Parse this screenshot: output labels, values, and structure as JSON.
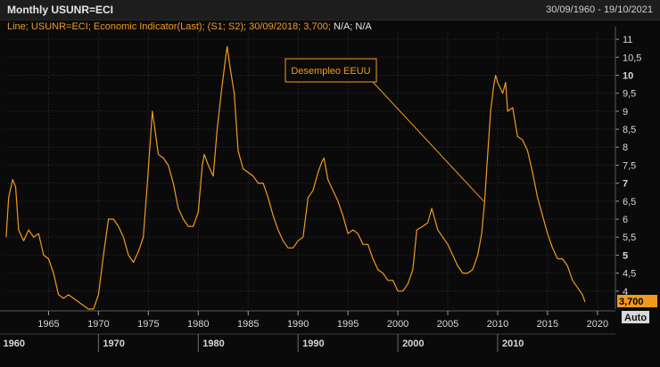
{
  "header": {
    "title": "Monthly USUNR=ECI",
    "date_range": "30/09/1960 - 19/10/2021"
  },
  "legend": {
    "prefix": "Line; USUNR=ECI; Economic Indicator(Last); (S1; S2); 30/09/2018; 3,700;",
    "na1": "N/A",
    "sep": ";",
    "na2": "N/A"
  },
  "axis": {
    "auto_label": "Auto",
    "last_value_label": "3,700"
  },
  "colors": {
    "background": "#0a0a0a",
    "line": "#f29a1c",
    "grid": "#2d2d2d",
    "axis_text": "#d8d8d8"
  },
  "chart_data": {
    "type": "line",
    "title": "",
    "xlabel": "",
    "ylabel": "",
    "xlim": [
      1960.67,
      2021.8
    ],
    "ylim": [
      3.5,
      11.2
    ],
    "grid": true,
    "y_ticks": [
      4,
      4.5,
      5,
      5.5,
      6,
      6.5,
      7,
      7.5,
      8,
      8.5,
      9,
      9.5,
      10,
      10.5,
      11
    ],
    "y_tick_labels": [
      "4",
      "4,5",
      "5",
      "5,5",
      "6",
      "6,5",
      "7",
      "7,5",
      "8",
      "8,5",
      "9",
      "9,5",
      "10",
      "10,5",
      "11"
    ],
    "y_tick_bold": [
      false,
      false,
      true,
      false,
      false,
      false,
      true,
      false,
      false,
      false,
      false,
      false,
      true,
      false,
      false
    ],
    "x_minor_ticks": [
      1965,
      1970,
      1975,
      1980,
      1985,
      1990,
      1995,
      2000,
      2005,
      2010,
      2015,
      2020
    ],
    "x_major_ticks": [
      1960,
      1970,
      1980,
      1990,
      2000,
      2010
    ],
    "annotation": {
      "text": "Desempleo EEUU",
      "x": 2008.6,
      "y": 6.5
    },
    "series": [
      {
        "points": [
          [
            1960.75,
            5.5
          ],
          [
            1961.0,
            6.6
          ],
          [
            1961.4,
            7.1
          ],
          [
            1961.7,
            6.9
          ],
          [
            1962.0,
            5.7
          ],
          [
            1962.5,
            5.4
          ],
          [
            1963.0,
            5.7
          ],
          [
            1963.5,
            5.5
          ],
          [
            1964.0,
            5.6
          ],
          [
            1964.5,
            5.0
          ],
          [
            1965.0,
            4.9
          ],
          [
            1965.5,
            4.5
          ],
          [
            1966.0,
            3.9
          ],
          [
            1966.5,
            3.8
          ],
          [
            1967.0,
            3.9
          ],
          [
            1967.5,
            3.8
          ],
          [
            1968.0,
            3.7
          ],
          [
            1968.5,
            3.6
          ],
          [
            1969.0,
            3.5
          ],
          [
            1969.5,
            3.5
          ],
          [
            1970.0,
            3.9
          ],
          [
            1970.5,
            5.0
          ],
          [
            1971.0,
            6.0
          ],
          [
            1971.5,
            6.0
          ],
          [
            1972.0,
            5.8
          ],
          [
            1972.5,
            5.5
          ],
          [
            1973.0,
            5.0
          ],
          [
            1973.5,
            4.8
          ],
          [
            1974.0,
            5.1
          ],
          [
            1974.5,
            5.5
          ],
          [
            1974.9,
            7.0
          ],
          [
            1975.3,
            8.6
          ],
          [
            1975.4,
            9.0
          ],
          [
            1975.7,
            8.4
          ],
          [
            1976.0,
            7.8
          ],
          [
            1976.5,
            7.7
          ],
          [
            1977.0,
            7.5
          ],
          [
            1977.5,
            7.0
          ],
          [
            1978.0,
            6.3
          ],
          [
            1978.5,
            6.0
          ],
          [
            1979.0,
            5.8
          ],
          [
            1979.5,
            5.8
          ],
          [
            1980.0,
            6.2
          ],
          [
            1980.4,
            7.5
          ],
          [
            1980.6,
            7.8
          ],
          [
            1981.0,
            7.5
          ],
          [
            1981.5,
            7.2
          ],
          [
            1981.9,
            8.5
          ],
          [
            1982.3,
            9.5
          ],
          [
            1982.7,
            10.4
          ],
          [
            1982.9,
            10.8
          ],
          [
            1983.2,
            10.2
          ],
          [
            1983.6,
            9.5
          ],
          [
            1984.0,
            7.9
          ],
          [
            1984.5,
            7.4
          ],
          [
            1985.0,
            7.3
          ],
          [
            1985.5,
            7.2
          ],
          [
            1986.0,
            7.0
          ],
          [
            1986.5,
            7.0
          ],
          [
            1987.0,
            6.6
          ],
          [
            1987.5,
            6.1
          ],
          [
            1988.0,
            5.7
          ],
          [
            1988.5,
            5.4
          ],
          [
            1989.0,
            5.2
          ],
          [
            1989.5,
            5.2
          ],
          [
            1990.0,
            5.4
          ],
          [
            1990.5,
            5.5
          ],
          [
            1991.0,
            6.6
          ],
          [
            1991.5,
            6.8
          ],
          [
            1992.0,
            7.3
          ],
          [
            1992.4,
            7.6
          ],
          [
            1992.6,
            7.7
          ],
          [
            1993.0,
            7.1
          ],
          [
            1993.5,
            6.8
          ],
          [
            1994.0,
            6.5
          ],
          [
            1994.5,
            6.1
          ],
          [
            1995.0,
            5.6
          ],
          [
            1995.5,
            5.7
          ],
          [
            1996.0,
            5.6
          ],
          [
            1996.5,
            5.3
          ],
          [
            1997.0,
            5.3
          ],
          [
            1997.5,
            4.9
          ],
          [
            1998.0,
            4.6
          ],
          [
            1998.5,
            4.5
          ],
          [
            1999.0,
            4.3
          ],
          [
            1999.5,
            4.3
          ],
          [
            2000.0,
            4.0
          ],
          [
            2000.5,
            4.0
          ],
          [
            2001.0,
            4.2
          ],
          [
            2001.5,
            4.6
          ],
          [
            2001.9,
            5.7
          ],
          [
            2002.5,
            5.8
          ],
          [
            2003.0,
            5.9
          ],
          [
            2003.4,
            6.3
          ],
          [
            2003.8,
            5.9
          ],
          [
            2004.0,
            5.7
          ],
          [
            2004.5,
            5.5
          ],
          [
            2005.0,
            5.3
          ],
          [
            2005.5,
            5.0
          ],
          [
            2006.0,
            4.7
          ],
          [
            2006.5,
            4.5
          ],
          [
            2007.0,
            4.5
          ],
          [
            2007.5,
            4.6
          ],
          [
            2008.0,
            5.0
          ],
          [
            2008.4,
            5.6
          ],
          [
            2008.7,
            6.5
          ],
          [
            2009.0,
            7.8
          ],
          [
            2009.3,
            9.0
          ],
          [
            2009.6,
            9.7
          ],
          [
            2009.8,
            10.0
          ],
          [
            2010.0,
            9.8
          ],
          [
            2010.5,
            9.5
          ],
          [
            2010.8,
            9.8
          ],
          [
            2011.0,
            9.0
          ],
          [
            2011.5,
            9.1
          ],
          [
            2012.0,
            8.3
          ],
          [
            2012.5,
            8.2
          ],
          [
            2013.0,
            7.9
          ],
          [
            2013.5,
            7.3
          ],
          [
            2014.0,
            6.6
          ],
          [
            2014.5,
            6.1
          ],
          [
            2015.0,
            5.6
          ],
          [
            2015.5,
            5.2
          ],
          [
            2016.0,
            4.9
          ],
          [
            2016.5,
            4.9
          ],
          [
            2017.0,
            4.7
          ],
          [
            2017.5,
            4.3
          ],
          [
            2018.0,
            4.1
          ],
          [
            2018.5,
            3.9
          ],
          [
            2018.75,
            3.7
          ]
        ]
      }
    ]
  }
}
